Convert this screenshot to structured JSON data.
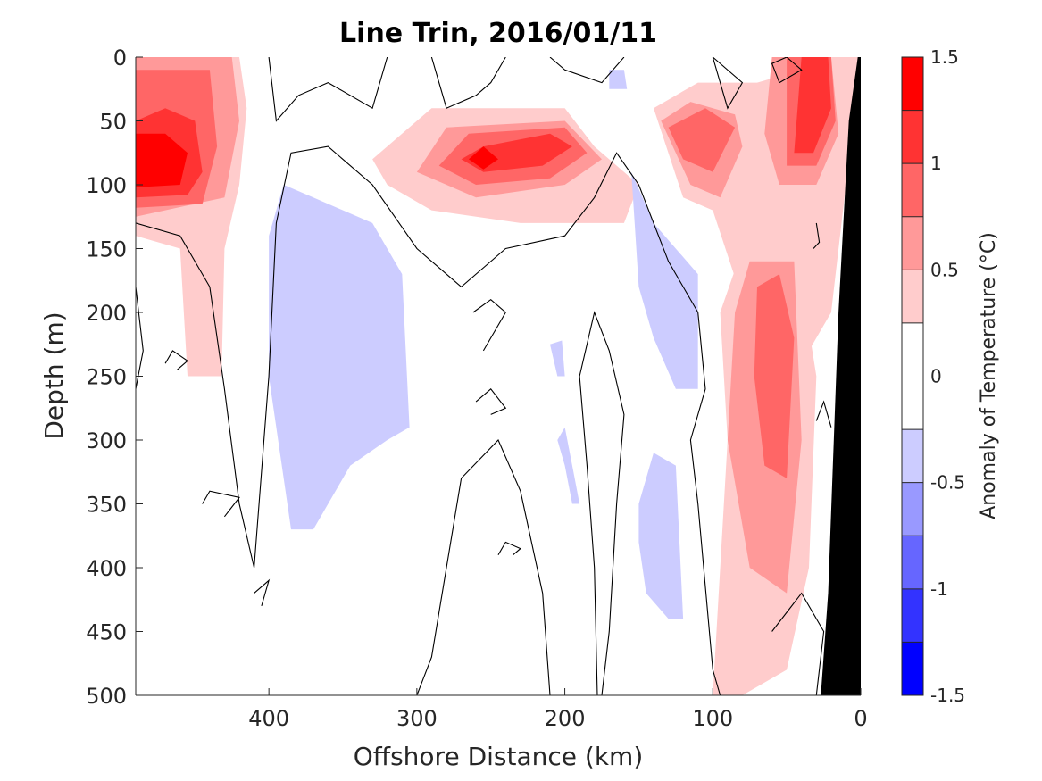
{
  "chart_data": {
    "type": "heatmap",
    "title": "Line Trin, 2016/01/11",
    "xlabel": "Offshore Distance (km)",
    "ylabel": "Depth (m)",
    "colorbar_label": "Anomaly of Temperature (°C)",
    "x_reversed": true,
    "y_reversed": true,
    "xlim": [
      490,
      0
    ],
    "ylim": [
      0,
      500
    ],
    "x_ticks": [
      400,
      300,
      200,
      100,
      0
    ],
    "y_ticks": [
      0,
      50,
      100,
      150,
      200,
      250,
      300,
      350,
      400,
      450,
      500
    ],
    "colorbar": {
      "range": [
        -1.5,
        1.5
      ],
      "ticks": [
        1.5,
        1,
        0.5,
        0,
        -0.5,
        -1,
        -1.5
      ],
      "levels": [
        -1.5,
        -1.25,
        -1.0,
        -0.75,
        -0.5,
        -0.25,
        0.25,
        0.5,
        0.75,
        1.0,
        1.25,
        1.5
      ],
      "colors": [
        "#0000ff",
        "#3333ff",
        "#6666ff",
        "#9999ff",
        "#ccccff",
        "#ffffff",
        "#ffcccc",
        "#ff9999",
        "#ff6666",
        "#ff3333",
        "#ff0000"
      ]
    },
    "colorbar_tick_labels": [
      "1.5",
      "1",
      "0.5",
      "0",
      "-0.5",
      "-1",
      "-1.5"
    ],
    "x_tick_labels": [
      "400",
      "300",
      "200",
      "100",
      "0"
    ],
    "y_tick_labels": [
      "0",
      "50",
      "100",
      "150",
      "200",
      "250",
      "300",
      "350",
      "400",
      "450",
      "500"
    ],
    "bathymetry": {
      "color": "#000000",
      "polygon": [
        [
          0,
          0
        ],
        [
          0,
          500
        ],
        [
          27,
          500
        ],
        [
          22,
          420
        ],
        [
          15,
          200
        ],
        [
          8,
          50
        ],
        [
          2,
          0
        ]
      ]
    },
    "regions": [
      {
        "level": 0.25,
        "polygon": [
          [
            490,
            0
          ],
          [
            420,
            0
          ],
          [
            415,
            40
          ],
          [
            420,
            100
          ],
          [
            430,
            150
          ],
          [
            432,
            250
          ],
          [
            455,
            250
          ],
          [
            460,
            150
          ],
          [
            490,
            140
          ]
        ]
      },
      {
        "level": 0.5,
        "polygon": [
          [
            490,
            0
          ],
          [
            425,
            0
          ],
          [
            420,
            50
          ],
          [
            430,
            110
          ],
          [
            490,
            125
          ]
        ]
      },
      {
        "level": 0.75,
        "polygon": [
          [
            490,
            10
          ],
          [
            440,
            10
          ],
          [
            435,
            70
          ],
          [
            445,
            115
          ],
          [
            490,
            118
          ]
        ]
      },
      {
        "level": 1.0,
        "polygon": [
          [
            490,
            50
          ],
          [
            470,
            40
          ],
          [
            450,
            50
          ],
          [
            445,
            90
          ],
          [
            455,
            108
          ],
          [
            490,
            110
          ]
        ]
      },
      {
        "level": 1.25,
        "polygon": [
          [
            490,
            60
          ],
          [
            470,
            60
          ],
          [
            455,
            75
          ],
          [
            460,
            100
          ],
          [
            490,
            102
          ]
        ]
      },
      {
        "level": 0.25,
        "polygon": [
          [
            320,
            100
          ],
          [
            330,
            80
          ],
          [
            290,
            40
          ],
          [
            200,
            40
          ],
          [
            180,
            70
          ],
          [
            150,
            100
          ],
          [
            160,
            130
          ],
          [
            230,
            130
          ],
          [
            290,
            120
          ]
        ]
      },
      {
        "level": 0.5,
        "polygon": [
          [
            300,
            90
          ],
          [
            280,
            55
          ],
          [
            200,
            50
          ],
          [
            175,
            80
          ],
          [
            200,
            100
          ],
          [
            260,
            110
          ]
        ]
      },
      {
        "level": 0.75,
        "polygon": [
          [
            285,
            85
          ],
          [
            265,
            60
          ],
          [
            200,
            55
          ],
          [
            185,
            75
          ],
          [
            210,
            95
          ],
          [
            260,
            100
          ]
        ]
      },
      {
        "level": 1.0,
        "polygon": [
          [
            270,
            80
          ],
          [
            255,
            70
          ],
          [
            210,
            60
          ],
          [
            195,
            70
          ],
          [
            215,
            85
          ],
          [
            255,
            90
          ]
        ]
      },
      {
        "level": 1.25,
        "polygon": [
          [
            265,
            80
          ],
          [
            255,
            70
          ],
          [
            245,
            80
          ],
          [
            255,
            88
          ]
        ]
      },
      {
        "level": 0.25,
        "polygon": [
          [
            140,
            40
          ],
          [
            110,
            20
          ],
          [
            70,
            20
          ],
          [
            40,
            10
          ],
          [
            20,
            0
          ],
          [
            0,
            0
          ],
          [
            20,
            200
          ],
          [
            40,
            240
          ],
          [
            60,
            260
          ],
          [
            80,
            190
          ],
          [
            100,
            120
          ],
          [
            120,
            110
          ]
        ]
      },
      {
        "level": 0.5,
        "polygon": [
          [
            135,
            50
          ],
          [
            115,
            35
          ],
          [
            85,
            45
          ],
          [
            80,
            70
          ],
          [
            95,
            110
          ],
          [
            115,
            100
          ]
        ]
      },
      {
        "level": 0.75,
        "polygon": [
          [
            130,
            55
          ],
          [
            105,
            40
          ],
          [
            85,
            55
          ],
          [
            100,
            90
          ],
          [
            120,
            80
          ]
        ]
      },
      {
        "level": 0.5,
        "polygon": [
          [
            60,
            0
          ],
          [
            20,
            0
          ],
          [
            15,
            60
          ],
          [
            30,
            100
          ],
          [
            55,
            100
          ],
          [
            65,
            60
          ]
        ]
      },
      {
        "level": 0.75,
        "polygon": [
          [
            50,
            0
          ],
          [
            20,
            0
          ],
          [
            17,
            50
          ],
          [
            30,
            85
          ],
          [
            50,
            85
          ]
        ]
      },
      {
        "level": 1.0,
        "polygon": [
          [
            40,
            0
          ],
          [
            22,
            0
          ],
          [
            20,
            40
          ],
          [
            32,
            75
          ],
          [
            45,
            75
          ]
        ]
      },
      {
        "level": 0.25,
        "polygon": [
          [
            95,
            200
          ],
          [
            80,
            150
          ],
          [
            45,
            140
          ],
          [
            30,
            250
          ],
          [
            35,
            400
          ],
          [
            50,
            480
          ],
          [
            80,
            500
          ],
          [
            100,
            500
          ],
          [
            90,
            300
          ]
        ]
      },
      {
        "level": 0.5,
        "polygon": [
          [
            85,
            200
          ],
          [
            75,
            160
          ],
          [
            45,
            160
          ],
          [
            40,
            300
          ],
          [
            50,
            420
          ],
          [
            75,
            400
          ],
          [
            90,
            300
          ]
        ]
      },
      {
        "level": 0.75,
        "polygon": [
          [
            70,
            180
          ],
          [
            55,
            170
          ],
          [
            45,
            220
          ],
          [
            50,
            330
          ],
          [
            65,
            320
          ],
          [
            72,
            250
          ]
        ]
      },
      {
        "level": -0.25,
        "polygon": [
          [
            390,
            100
          ],
          [
            370,
            110
          ],
          [
            330,
            130
          ],
          [
            310,
            170
          ],
          [
            305,
            290
          ],
          [
            320,
            300
          ],
          [
            345,
            320
          ],
          [
            370,
            370
          ],
          [
            385,
            370
          ],
          [
            400,
            250
          ],
          [
            400,
            140
          ]
        ]
      },
      {
        "level": -0.25,
        "polygon": [
          [
            155,
            90
          ],
          [
            140,
            130
          ],
          [
            110,
            170
          ],
          [
            110,
            260
          ],
          [
            125,
            260
          ],
          [
            140,
            220
          ],
          [
            150,
            180
          ]
        ]
      },
      {
        "level": -0.25,
        "polygon": [
          [
            150,
            380
          ],
          [
            145,
            420
          ],
          [
            130,
            440
          ],
          [
            120,
            440
          ],
          [
            125,
            320
          ],
          [
            140,
            310
          ],
          [
            150,
            350
          ]
        ]
      },
      {
        "level": -0.25,
        "polygon": [
          [
            205,
            300
          ],
          [
            200,
            320
          ],
          [
            195,
            350
          ],
          [
            190,
            350
          ],
          [
            195,
            320
          ],
          [
            200,
            290
          ]
        ]
      },
      {
        "level": -0.25,
        "polygon": [
          [
            210,
            225
          ],
          [
            205,
            250
          ],
          [
            200,
            250
          ],
          [
            202,
            222
          ]
        ]
      },
      {
        "level": -0.25,
        "polygon": [
          [
            170,
            10
          ],
          [
            160,
            10
          ],
          [
            158,
            25
          ],
          [
            170,
            25
          ]
        ]
      }
    ],
    "contours": [
      [
        [
          490,
          130
        ],
        [
          460,
          140
        ],
        [
          440,
          180
        ],
        [
          430,
          260
        ],
        [
          420,
          350
        ],
        [
          410,
          400
        ],
        [
          400,
          250
        ],
        [
          395,
          130
        ],
        [
          385,
          75
        ],
        [
          360,
          70
        ],
        [
          330,
          100
        ],
        [
          300,
          150
        ],
        [
          270,
          180
        ],
        [
          255,
          165
        ],
        [
          240,
          150
        ],
        [
          200,
          140
        ],
        [
          180,
          110
        ],
        [
          165,
          75
        ],
        [
          150,
          100
        ],
        [
          130,
          160
        ],
        [
          110,
          200
        ],
        [
          105,
          260
        ],
        [
          115,
          300
        ],
        [
          110,
          350
        ],
        [
          100,
          480
        ],
        [
          95,
          500
        ]
      ],
      [
        [
          300,
          500
        ],
        [
          290,
          470
        ],
        [
          280,
          400
        ],
        [
          270,
          330
        ],
        [
          245,
          300
        ],
        [
          230,
          340
        ],
        [
          215,
          420
        ],
        [
          210,
          500
        ]
      ],
      [
        [
          175,
          500
        ],
        [
          170,
          450
        ],
        [
          165,
          350
        ],
        [
          160,
          280
        ],
        [
          170,
          230
        ],
        [
          180,
          200
        ],
        [
          190,
          250
        ],
        [
          185,
          320
        ],
        [
          180,
          400
        ],
        [
          178,
          500
        ]
      ],
      [
        [
          490,
          180
        ],
        [
          485,
          230
        ],
        [
          490,
          260
        ]
      ],
      [
        [
          400,
          0
        ],
        [
          395,
          50
        ],
        [
          380,
          30
        ],
        [
          360,
          20
        ],
        [
          330,
          40
        ],
        [
          320,
          0
        ]
      ],
      [
        [
          290,
          0
        ],
        [
          280,
          40
        ],
        [
          260,
          30
        ],
        [
          250,
          20
        ],
        [
          240,
          0
        ]
      ],
      [
        [
          160,
          0
        ],
        [
          175,
          20
        ],
        [
          200,
          10
        ],
        [
          210,
          0
        ]
      ],
      [
        [
          100,
          0
        ],
        [
          80,
          20
        ],
        [
          90,
          40
        ],
        [
          100,
          0
        ]
      ],
      [
        [
          55,
          20
        ],
        [
          40,
          10
        ],
        [
          50,
          0
        ],
        [
          60,
          5
        ],
        [
          55,
          20
        ]
      ],
      [
        [
          60,
          450
        ],
        [
          40,
          420
        ],
        [
          25,
          450
        ],
        [
          30,
          500
        ]
      ],
      [
        [
          245,
          390
        ],
        [
          240,
          380
        ],
        [
          230,
          385
        ],
        [
          235,
          390
        ]
      ],
      [
        [
          260,
          270
        ],
        [
          250,
          260
        ],
        [
          240,
          275
        ],
        [
          250,
          280
        ]
      ],
      [
        [
          262,
          200
        ],
        [
          250,
          190
        ],
        [
          240,
          200
        ],
        [
          255,
          230
        ]
      ],
      [
        [
          470,
          240
        ],
        [
          465,
          230
        ],
        [
          455,
          238
        ],
        [
          462,
          245
        ]
      ],
      [
        [
          445,
          350
        ],
        [
          440,
          340
        ],
        [
          420,
          345
        ],
        [
          430,
          360
        ]
      ],
      [
        [
          410,
          420
        ],
        [
          400,
          410
        ],
        [
          405,
          430
        ]
      ],
      [
        [
          30,
          130
        ],
        [
          28,
          145
        ],
        [
          32,
          150
        ]
      ],
      [
        [
          30,
          285
        ],
        [
          25,
          270
        ],
        [
          20,
          290
        ]
      ]
    ]
  }
}
